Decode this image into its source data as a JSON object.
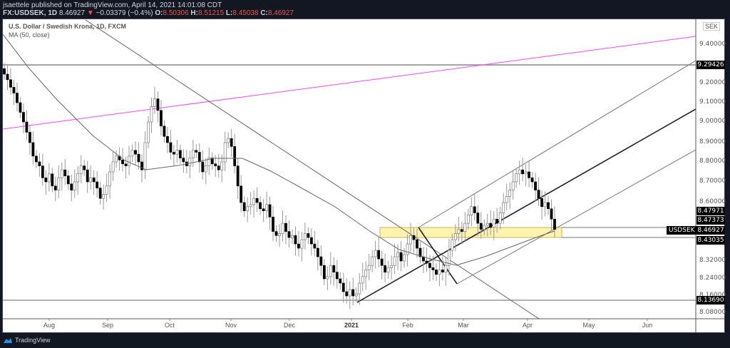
{
  "header": {
    "published": "jsaettele published on TradingView.com, April 14, 2021 14:01:08 CDT",
    "symbol": "FX:USDSEK, 1D",
    "last": "8.46927",
    "change_arrow": "▼",
    "change": "−0.03379 (−0.4%)",
    "o_label": "O:",
    "o": "8.50306",
    "h_label": "H:",
    "h": "8.51215",
    "l_label": "L:",
    "l": "8.45038",
    "c_label": "C:",
    "c": "8.46927"
  },
  "legend": {
    "title": "U.S. Dollar / Swedish Krona, 1D, FXCM",
    "indicator": "MA (50, close)"
  },
  "currency_badge": "SEK",
  "footer": {
    "brand": "TradingView"
  },
  "colors": {
    "accent_magenta": "#ff00ff",
    "zone_fill": "#fff3b0",
    "zone_border": "#c9b458",
    "header_bg": "#131722",
    "neg": "#ef5350"
  },
  "chart_data": {
    "type": "candlestick",
    "title": "U.S. Dollar / Swedish Krona, 1D, FXCM",
    "xlabel": "",
    "ylabel": "SEK",
    "x_ticks": [
      "Aug",
      "Sep",
      "Oct",
      "Nov",
      "Dec",
      "2021",
      "Feb",
      "Mar",
      "Apr",
      "May",
      "Jun"
    ],
    "y_ticks": [
      "9.40000",
      "9.20000",
      "9.10000",
      "9.00000",
      "8.90000",
      "8.80000",
      "8.70000",
      "8.60000",
      "8.32000",
      "8.24000",
      "8.16000",
      "8.08000"
    ],
    "ylim": [
      8.05,
      9.52
    ],
    "price_labels": [
      {
        "value": "9.29426",
        "kind": "horizontal-level"
      },
      {
        "value": "8.47971",
        "kind": "zone-top"
      },
      {
        "value": "8.47373",
        "kind": "ma50"
      },
      {
        "value": "8.46927",
        "kind": "last-price",
        "symbol": "USDSEK"
      },
      {
        "value": "8.43035",
        "kind": "zone-bottom"
      },
      {
        "value": "8.13690",
        "kind": "horizontal-level"
      }
    ],
    "closes_approx": [
      9.25,
      9.22,
      9.18,
      9.15,
      9.1,
      9.05,
      9.0,
      8.95,
      8.9,
      8.83,
      8.8,
      8.78,
      8.72,
      8.7,
      8.74,
      8.68,
      8.66,
      8.72,
      8.76,
      8.73,
      8.69,
      8.66,
      8.7,
      8.74,
      8.78,
      8.76,
      8.7,
      8.72,
      8.7,
      8.67,
      8.62,
      8.64,
      8.68,
      8.75,
      8.8,
      8.83,
      8.81,
      8.79,
      8.78,
      8.83,
      8.86,
      8.84,
      8.8,
      8.76,
      8.9,
      9.0,
      9.08,
      9.12,
      9.06,
      8.98,
      8.93,
      8.9,
      8.85,
      8.84,
      8.86,
      8.82,
      8.8,
      8.78,
      8.82,
      8.86,
      8.85,
      8.8,
      8.75,
      8.78,
      8.82,
      8.79,
      8.78,
      8.76,
      8.8,
      8.9,
      8.92,
      8.88,
      8.78,
      8.68,
      8.6,
      8.56,
      8.58,
      8.59,
      8.62,
      8.6,
      8.57,
      8.56,
      8.59,
      8.53,
      8.46,
      8.44,
      8.45,
      8.5,
      8.46,
      8.43,
      8.44,
      8.4,
      8.38,
      8.42,
      8.45,
      8.43,
      8.4,
      8.38,
      8.34,
      8.3,
      8.24,
      8.25,
      8.3,
      8.27,
      8.24,
      8.22,
      8.18,
      8.16,
      8.19,
      8.16,
      8.17,
      8.22,
      8.25,
      8.28,
      8.3,
      8.34,
      8.37,
      8.33,
      8.3,
      8.27,
      8.29,
      8.3,
      8.34,
      8.36,
      8.32,
      8.35,
      8.4,
      8.44,
      8.42,
      8.38,
      8.34,
      8.32,
      8.31,
      8.29,
      8.28,
      8.26,
      8.28,
      8.27,
      8.3,
      8.37,
      8.42,
      8.45,
      8.47,
      8.46,
      8.5,
      8.54,
      8.58,
      8.55,
      8.5,
      8.47,
      8.49,
      8.5,
      8.48,
      8.52,
      8.5,
      8.55,
      8.6,
      8.63,
      8.66,
      8.7,
      8.74,
      8.76,
      8.74,
      8.75,
      8.72,
      8.7,
      8.66,
      8.62,
      8.58,
      8.6,
      8.57,
      8.52,
      8.47
    ],
    "ma50": "smooth 50-day moving average, falling from ~9.45 to ~8.82 flat through Oct–Nov, declining to ~8.30 by late Feb, rising to ~8.47 mid-Apr",
    "drawings": [
      {
        "type": "hline",
        "price": 9.29426
      },
      {
        "type": "hline",
        "price": 8.1369
      },
      {
        "type": "zone",
        "from": 8.43035,
        "to": 8.47971,
        "x_range": [
          "late Jan",
          "mid Apr"
        ]
      },
      {
        "type": "trendline",
        "color": "magenta",
        "desc": "rising line from ~8.97 (Jul) to ~9.44 (Jun)"
      },
      {
        "type": "trendline",
        "desc": "falling resistance from Jul high through Nov high to Apr"
      },
      {
        "type": "channel",
        "desc": "rising channel from early Jan low (~8.14) with parallels"
      },
      {
        "type": "trendline",
        "desc": "steep drop from Feb 5 to late Feb low"
      }
    ]
  }
}
